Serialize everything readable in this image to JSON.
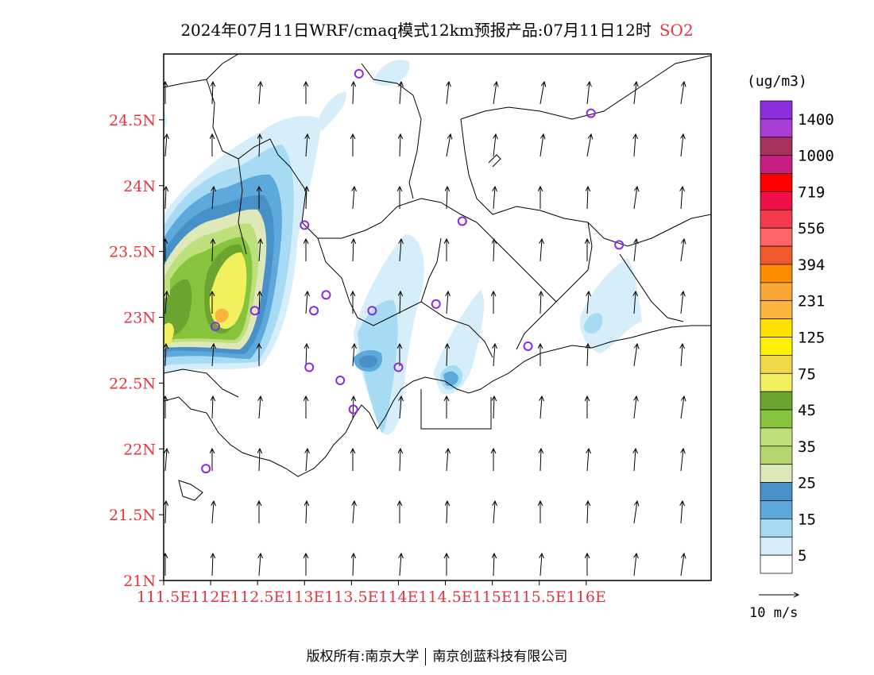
{
  "title": {
    "main": "2024年07月11日WRF/cmaq模式12km预报产品:07月11日12时",
    "species": "SO2"
  },
  "units": "(ug/m3)",
  "axes": {
    "lat_labels": [
      "24.5N",
      "24N",
      "23.5N",
      "23N",
      "22.5N",
      "22N",
      "21.5N",
      "21N"
    ],
    "lat_values": [
      24.5,
      24.0,
      23.5,
      23.0,
      22.5,
      22.0,
      21.5,
      21.0
    ],
    "lon_labels": [
      "111.5E",
      "112E",
      "112.5E",
      "113E",
      "113.5E",
      "114E",
      "114.5E",
      "115E",
      "115.5E",
      "116E"
    ],
    "lon_values": [
      111.5,
      112.0,
      112.5,
      113.0,
      113.5,
      114.0,
      114.5,
      115.0,
      115.5,
      116.0
    ],
    "label_color": "#e8343f",
    "lon_range": [
      111.5,
      117.33
    ],
    "lat_range": [
      21.0,
      25.0
    ]
  },
  "legend": {
    "labels": [
      "1400",
      "1000",
      "719",
      "556",
      "394",
      "231",
      "125",
      "75",
      "45",
      "35",
      "25",
      "15",
      "5"
    ],
    "colors_top_to_bottom": [
      "#8c2ee0",
      "#a93ed6",
      "#a8325e",
      "#c61f86",
      "#ff0000",
      "#f01048",
      "#f53a4c",
      "#ff6666",
      "#f05a28",
      "#ff8c00",
      "#f7a535",
      "#f9b53c",
      "#ffe000",
      "#fff200",
      "#f0d84a",
      "#f2f05c",
      "#6ba530",
      "#86c43c",
      "#bde07a",
      "#b5d56f",
      "#dfe8b8",
      "#4790c8",
      "#5da8dc",
      "#a7dbf3",
      "#d6eefa",
      "#ffffff"
    ]
  },
  "wind": {
    "reference_label": "10 m/s",
    "general_direction": "north"
  },
  "stations": {
    "color": "#8a2be2",
    "points": [
      {
        "lon": 113.58,
        "lat": 24.85
      },
      {
        "lon": 116.05,
        "lat": 24.55
      },
      {
        "lon": 113.0,
        "lat": 23.7
      },
      {
        "lon": 114.68,
        "lat": 23.73
      },
      {
        "lon": 116.35,
        "lat": 23.55
      },
      {
        "lon": 112.47,
        "lat": 23.05
      },
      {
        "lon": 113.1,
        "lat": 23.05
      },
      {
        "lon": 113.23,
        "lat": 23.17
      },
      {
        "lon": 113.72,
        "lat": 23.05
      },
      {
        "lon": 114.4,
        "lat": 23.1
      },
      {
        "lon": 112.05,
        "lat": 22.93
      },
      {
        "lon": 115.38,
        "lat": 22.78
      },
      {
        "lon": 113.05,
        "lat": 22.62
      },
      {
        "lon": 113.38,
        "lat": 22.52
      },
      {
        "lon": 114.0,
        "lat": 22.62
      },
      {
        "lon": 113.52,
        "lat": 22.3
      },
      {
        "lon": 111.95,
        "lat": 21.85
      }
    ]
  },
  "footer": {
    "left": "版权所有:南京大学",
    "right": "南京创蓝科技有限公司"
  }
}
